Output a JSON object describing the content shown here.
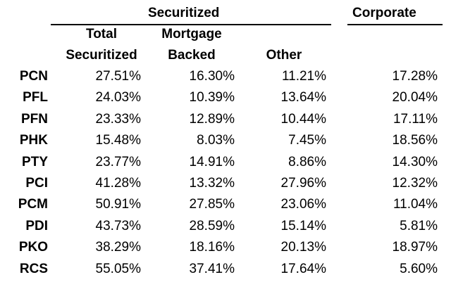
{
  "header": {
    "securitized_group": "Securitized",
    "corporate_group": "Corporate",
    "columns": [
      {
        "line1": "Total",
        "line2": "Securitized"
      },
      {
        "line1": "Mortgage",
        "line2": "Backed"
      },
      {
        "line1": "",
        "line2": "Other"
      }
    ]
  },
  "rows": [
    {
      "label": "PCN",
      "total": "27.51%",
      "mortgage": "16.30%",
      "other": "11.21%",
      "corporate": "17.28%"
    },
    {
      "label": "PFL",
      "total": "24.03%",
      "mortgage": "10.39%",
      "other": "13.64%",
      "corporate": "20.04%"
    },
    {
      "label": "PFN",
      "total": "23.33%",
      "mortgage": "12.89%",
      "other": "10.44%",
      "corporate": "17.11%"
    },
    {
      "label": "PHK",
      "total": "15.48%",
      "mortgage": "8.03%",
      "other": "7.45%",
      "corporate": "18.56%"
    },
    {
      "label": "PTY",
      "total": "23.77%",
      "mortgage": "14.91%",
      "other": "8.86%",
      "corporate": "14.30%"
    },
    {
      "label": "PCI",
      "total": "41.28%",
      "mortgage": "13.32%",
      "other": "27.96%",
      "corporate": "12.32%"
    },
    {
      "label": "PCM",
      "total": "50.91%",
      "mortgage": "27.85%",
      "other": "23.06%",
      "corporate": "11.04%"
    },
    {
      "label": "PDI",
      "total": "43.73%",
      "mortgage": "28.59%",
      "other": "15.14%",
      "corporate": "5.81%"
    },
    {
      "label": "PKO",
      "total": "38.29%",
      "mortgage": "18.16%",
      "other": "20.13%",
      "corporate": "18.97%"
    },
    {
      "label": "RCS",
      "total": "55.05%",
      "mortgage": "37.41%",
      "other": "17.64%",
      "corporate": "5.60%"
    }
  ]
}
